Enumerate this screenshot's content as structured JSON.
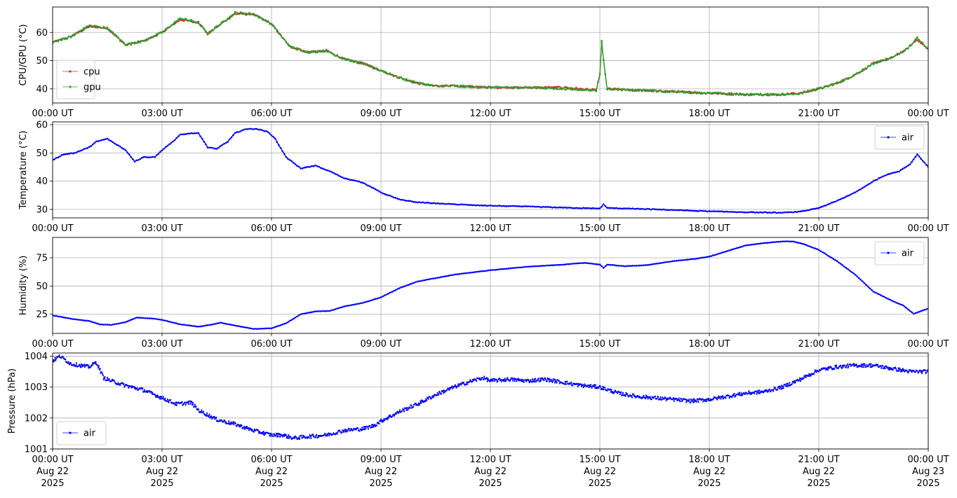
{
  "chart_data": [
    {
      "type": "line",
      "ylabel": "CPU/GPU (°C)",
      "xlim_hours": [
        0,
        24
      ],
      "ylim": [
        35,
        69
      ],
      "yticks": [
        40,
        50,
        60
      ],
      "xtick_labels": [
        "00:00 UT",
        "03:00 UT",
        "06:00 UT",
        "09:00 UT",
        "12:00 UT",
        "15:00 UT",
        "18:00 UT",
        "21:00 UT",
        "00:00 UT"
      ],
      "grid": true,
      "legend_position": "lower left",
      "series": [
        {
          "name": "cpu",
          "color": "#d62728",
          "x_hours": [
            0,
            0.5,
            1.0,
            1.5,
            2.0,
            2.5,
            3.0,
            3.5,
            4.0,
            4.25,
            4.5,
            5.0,
            5.5,
            6.0,
            6.5,
            7.0,
            7.5,
            8.0,
            8.5,
            9.0,
            9.5,
            10.0,
            10.5,
            11.0,
            12.0,
            13.0,
            14.0,
            14.9,
            15.0,
            15.05,
            15.1,
            15.2,
            16.0,
            17.0,
            18.0,
            19.0,
            20.0,
            20.5,
            21.0,
            21.5,
            22.0,
            22.5,
            23.0,
            23.4,
            23.7,
            24.0
          ],
          "values": [
            56.5,
            58.5,
            62.0,
            61.5,
            55.5,
            57.0,
            60.0,
            64.5,
            63.5,
            59.5,
            62.0,
            66.5,
            66.5,
            63.0,
            55.0,
            53.0,
            53.5,
            50.5,
            49.0,
            46.5,
            44.0,
            42.0,
            41.0,
            41.0,
            40.5,
            40.5,
            40.5,
            39.5,
            45.0,
            56.5,
            50.0,
            40.0,
            39.5,
            39.0,
            38.5,
            38.0,
            38.0,
            38.5,
            40.0,
            42.0,
            45.0,
            49.0,
            51.0,
            54.0,
            57.5,
            54.0
          ]
        },
        {
          "name": "gpu",
          "color": "#2ca02c",
          "x_hours": [
            0,
            0.5,
            1.0,
            1.5,
            2.0,
            2.5,
            3.0,
            3.5,
            4.0,
            4.25,
            4.5,
            5.0,
            5.5,
            6.0,
            6.5,
            7.0,
            7.5,
            8.0,
            8.5,
            9.0,
            9.5,
            10.0,
            10.5,
            11.0,
            12.0,
            13.0,
            14.0,
            14.9,
            15.0,
            15.05,
            15.1,
            15.2,
            16.0,
            17.0,
            18.0,
            19.0,
            20.0,
            20.5,
            21.0,
            21.5,
            22.0,
            22.5,
            23.0,
            23.4,
            23.7,
            24.0
          ],
          "values": [
            56.5,
            58.5,
            62.5,
            61.5,
            55.8,
            57.0,
            60.0,
            65.0,
            63.5,
            59.5,
            62.0,
            67.0,
            66.5,
            63.0,
            55.0,
            53.0,
            53.5,
            50.5,
            49.0,
            46.5,
            44.0,
            42.0,
            41.0,
            41.0,
            40.5,
            40.5,
            40.0,
            39.5,
            45.0,
            57.0,
            50.0,
            40.0,
            39.5,
            39.0,
            38.5,
            38.0,
            38.0,
            38.5,
            40.0,
            42.0,
            45.0,
            49.0,
            51.0,
            54.0,
            58.0,
            54.0
          ]
        }
      ]
    },
    {
      "type": "line",
      "ylabel": "Temperature (°C)",
      "xlim_hours": [
        0,
        24
      ],
      "ylim": [
        27,
        61
      ],
      "yticks": [
        30,
        40,
        50,
        60
      ],
      "xtick_labels": [
        "00:00 UT",
        "03:00 UT",
        "06:00 UT",
        "09:00 UT",
        "12:00 UT",
        "15:00 UT",
        "18:00 UT",
        "21:00 UT",
        "00:00 UT"
      ],
      "grid": true,
      "legend_position": "upper right",
      "series": [
        {
          "name": "air",
          "color": "#0000ff",
          "x_hours": [
            0,
            0.3,
            0.6,
            1.0,
            1.2,
            1.5,
            2.0,
            2.25,
            2.5,
            2.8,
            3.0,
            3.3,
            3.5,
            3.8,
            4.0,
            4.25,
            4.5,
            4.8,
            5.0,
            5.3,
            5.6,
            5.9,
            6.1,
            6.4,
            6.8,
            7.2,
            7.6,
            8.0,
            8.5,
            9.0,
            9.5,
            10.0,
            11.0,
            12.0,
            13.0,
            14.0,
            15.0,
            15.1,
            15.2,
            16.0,
            17.0,
            18.0,
            19.0,
            20.0,
            20.5,
            21.0,
            21.5,
            22.0,
            22.5,
            22.8,
            23.2,
            23.5,
            23.7,
            24.0
          ],
          "values": [
            47.5,
            49.5,
            50.0,
            52.0,
            54.0,
            55.0,
            51.0,
            47.0,
            48.5,
            48.5,
            51.0,
            54.0,
            56.5,
            57.0,
            57.0,
            52.0,
            51.5,
            54.0,
            57.0,
            58.5,
            58.5,
            57.5,
            55.0,
            48.5,
            44.5,
            45.5,
            43.5,
            41.0,
            39.5,
            36.0,
            33.5,
            32.5,
            31.8,
            31.3,
            31.0,
            30.6,
            30.3,
            31.8,
            30.5,
            30.2,
            29.8,
            29.3,
            29.0,
            28.8,
            29.2,
            30.5,
            33.0,
            36.0,
            40.0,
            42.0,
            43.5,
            46.0,
            49.5,
            45.0
          ]
        }
      ]
    },
    {
      "type": "line",
      "ylabel": "Humidity (%)",
      "xlim_hours": [
        0,
        24
      ],
      "ylim": [
        8,
        93
      ],
      "yticks": [
        25,
        50,
        75
      ],
      "xtick_labels": [
        "00:00 UT",
        "03:00 UT",
        "06:00 UT",
        "09:00 UT",
        "12:00 UT",
        "15:00 UT",
        "18:00 UT",
        "21:00 UT",
        "00:00 UT"
      ],
      "grid": true,
      "legend_position": "upper right",
      "series": [
        {
          "name": "air",
          "color": "#0000ff",
          "x_hours": [
            0,
            0.5,
            1.0,
            1.3,
            1.6,
            2.0,
            2.3,
            2.8,
            3.0,
            3.5,
            4.0,
            4.3,
            4.6,
            5.0,
            5.5,
            6.0,
            6.4,
            6.8,
            7.2,
            7.6,
            8.0,
            8.5,
            9.0,
            9.5,
            10.0,
            11.0,
            12.0,
            13.0,
            14.0,
            14.6,
            15.0,
            15.1,
            15.2,
            15.7,
            16.3,
            17.0,
            17.6,
            18.0,
            18.5,
            19.0,
            19.5,
            20.0,
            20.3,
            20.6,
            21.0,
            21.5,
            22.0,
            22.5,
            23.0,
            23.3,
            23.6,
            24.0
          ],
          "values": [
            24,
            21,
            19,
            16,
            15.5,
            18,
            22,
            21,
            20,
            16,
            14,
            15.5,
            17.5,
            15,
            12,
            12.5,
            17,
            25,
            27.5,
            28,
            32,
            35,
            40,
            48,
            54,
            60,
            64,
            67,
            69,
            70.5,
            69,
            66,
            69,
            67.5,
            68.5,
            72,
            74,
            76,
            81,
            86,
            88,
            89.5,
            89.5,
            87,
            82,
            72,
            60,
            45,
            37,
            33,
            25.5,
            30
          ]
        }
      ]
    },
    {
      "type": "line",
      "ylabel": "Pressure (hPa)",
      "xlim_hours": [
        0,
        24
      ],
      "ylim": [
        1001.0,
        1004.1
      ],
      "yticks": [
        1001,
        1002,
        1003,
        1004
      ],
      "xtick_labels": [
        "00:00 UT",
        "03:00 UT",
        "06:00 UT",
        "09:00 UT",
        "12:00 UT",
        "15:00 UT",
        "18:00 UT",
        "21:00 UT",
        "00:00 UT"
      ],
      "xtick_sublabels": [
        "Aug 22",
        "Aug 22",
        "Aug 22",
        "Aug 22",
        "Aug 22",
        "Aug 22",
        "Aug 22",
        "Aug 22",
        "Aug 23"
      ],
      "xtick_years": [
        "2025",
        "2025",
        "2025",
        "2025",
        "2025",
        "2025",
        "2025",
        "2025",
        "2025"
      ],
      "grid": true,
      "legend_position": "lower left",
      "series": [
        {
          "name": "air",
          "color": "#0000ff",
          "x_hours": [
            0,
            0.2,
            0.5,
            1.0,
            1.2,
            1.4,
            1.6,
            2.0,
            2.5,
            3.0,
            3.4,
            3.8,
            4.0,
            4.5,
            5.0,
            5.5,
            6.0,
            6.3,
            6.6,
            7.0,
            7.5,
            8.0,
            8.5,
            8.8,
            9.0,
            9.5,
            10.0,
            10.5,
            11.0,
            11.5,
            11.8,
            12.0,
            12.5,
            13.0,
            13.5,
            14.0,
            14.5,
            15.0,
            15.5,
            16.0,
            16.5,
            17.0,
            17.5,
            18.0,
            18.5,
            19.0,
            19.5,
            20.0,
            20.5,
            21.0,
            21.5,
            22.0,
            22.5,
            23.0,
            23.5,
            24.0
          ],
          "values": [
            1003.85,
            1004.0,
            1003.75,
            1003.65,
            1003.8,
            1003.3,
            1003.2,
            1003.05,
            1002.9,
            1002.65,
            1002.45,
            1002.5,
            1002.25,
            1001.95,
            1001.8,
            1001.6,
            1001.45,
            1001.45,
            1001.35,
            1001.4,
            1001.45,
            1001.6,
            1001.65,
            1001.75,
            1001.9,
            1002.2,
            1002.45,
            1002.75,
            1003.0,
            1003.2,
            1003.3,
            1003.2,
            1003.25,
            1003.2,
            1003.25,
            1003.15,
            1003.05,
            1003.0,
            1002.8,
            1002.7,
            1002.65,
            1002.6,
            1002.55,
            1002.6,
            1002.7,
            1002.8,
            1002.85,
            1003.0,
            1003.25,
            1003.55,
            1003.65,
            1003.7,
            1003.7,
            1003.6,
            1003.5,
            1003.5
          ]
        }
      ]
    }
  ]
}
